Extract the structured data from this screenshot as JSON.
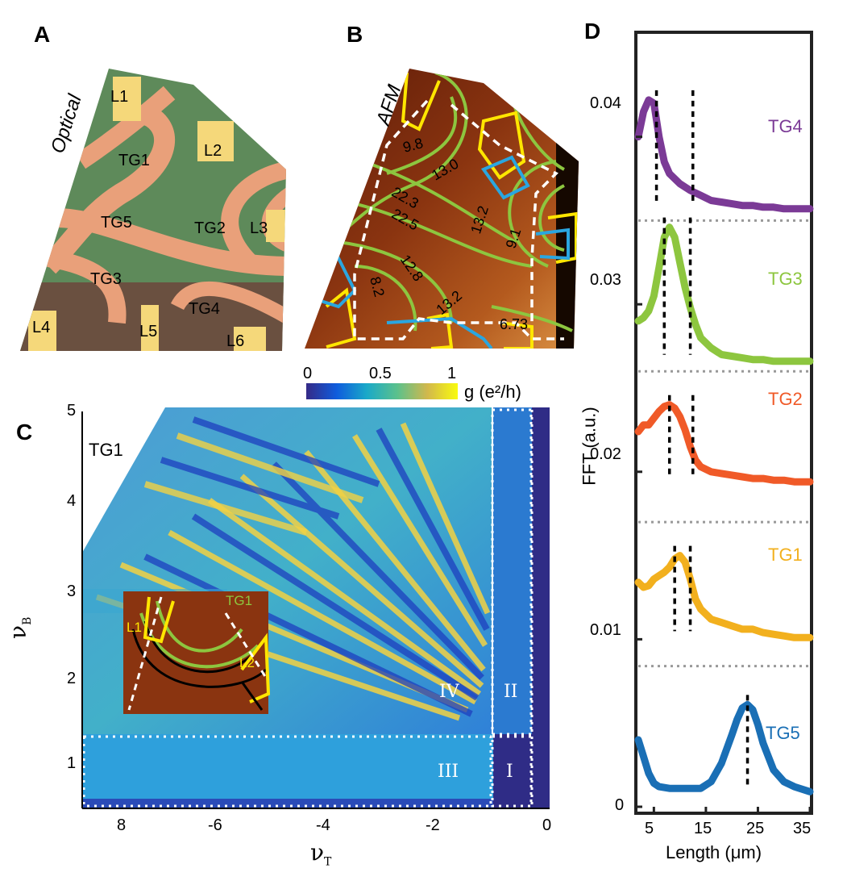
{
  "panels": {
    "a": {
      "letter": "A",
      "modality": "Optical",
      "labels": [
        "L1",
        "L2",
        "L3",
        "L4",
        "L5",
        "L6",
        "TG1",
        "TG2",
        "TG3",
        "TG4",
        "TG5"
      ]
    },
    "b": {
      "letter": "B",
      "modality": "AFM",
      "contour_values": [
        "9.8",
        "13.0",
        "22.3",
        "22.5",
        "13.2",
        "9.1",
        "12.8",
        "8.2",
        "13.2",
        "6.73"
      ]
    },
    "c": {
      "letter": "C",
      "gate_label": "TG1",
      "colorbar": {
        "ticks": [
          "0",
          "0.5",
          "1"
        ],
        "unit_label": "g (e²/h)"
      },
      "y_axis": {
        "label": "ν",
        "label_sub": "B",
        "ticks": [
          "1",
          "2",
          "3",
          "4",
          "5"
        ]
      },
      "x_axis": {
        "label": "ν",
        "label_sub": "T",
        "ticks": [
          "8",
          "-6",
          "-4",
          "-2",
          "0"
        ]
      },
      "regions": [
        "IV",
        "II",
        "III",
        "I"
      ],
      "inset_labels": [
        "L1",
        "TG1",
        "L2"
      ]
    },
    "d": {
      "letter": "D",
      "y_axis": {
        "label": "FFT (a.u.)",
        "ticks": [
          "0",
          "0.01",
          "0.02",
          "0.03",
          "0.04"
        ]
      },
      "x_axis": {
        "label": "Length (μm)",
        "ticks": [
          "5",
          "15",
          "25",
          "35"
        ]
      }
    }
  },
  "chart_data": {
    "type": "line",
    "title": "",
    "xlabel": "Length (μm)",
    "ylabel": "FFT (a.u.)",
    "xlim": [
      2,
      35
    ],
    "ylim": [
      0,
      0.046
    ],
    "series": [
      {
        "name": "TG4",
        "color": "#7b3a96",
        "x": [
          2,
          3,
          4,
          5,
          6,
          7,
          8,
          10,
          12,
          14,
          16,
          18,
          20,
          22,
          24,
          26,
          28,
          30,
          32,
          35
        ],
        "y": [
          0.04,
          0.0415,
          0.0422,
          0.042,
          0.04,
          0.0385,
          0.0378,
          0.0372,
          0.0368,
          0.0365,
          0.0362,
          0.0361,
          0.036,
          0.0359,
          0.0359,
          0.0358,
          0.0358,
          0.0357,
          0.0357,
          0.0357
        ],
        "dashed_markers": [
          5.5,
          12.5
        ]
      },
      {
        "name": "TG3",
        "color": "#8dc63f",
        "x": [
          2,
          3,
          4,
          5,
          6,
          7,
          8,
          9,
          10,
          11,
          12,
          13,
          14,
          16,
          18,
          20,
          22,
          24,
          26,
          28,
          30,
          32,
          35
        ],
        "y": [
          0.029,
          0.0292,
          0.0296,
          0.0305,
          0.0322,
          0.034,
          0.0346,
          0.034,
          0.0325,
          0.031,
          0.0298,
          0.0288,
          0.028,
          0.0274,
          0.027,
          0.0269,
          0.0268,
          0.0267,
          0.0267,
          0.0266,
          0.0266,
          0.0266,
          0.0266
        ],
        "dashed_markers": [
          7,
          12
        ]
      },
      {
        "name": "TG2",
        "color": "#f05a28",
        "x": [
          2,
          3,
          4,
          5,
          6,
          7,
          8,
          9,
          10,
          11,
          12,
          13,
          14,
          16,
          18,
          20,
          22,
          24,
          26,
          28,
          30,
          32,
          35
        ],
        "y": [
          0.0224,
          0.0228,
          0.0228,
          0.0232,
          0.0236,
          0.0239,
          0.024,
          0.0238,
          0.0233,
          0.0225,
          0.0215,
          0.0207,
          0.0203,
          0.02,
          0.0199,
          0.0198,
          0.0197,
          0.0196,
          0.0196,
          0.0195,
          0.0195,
          0.0194,
          0.0194
        ],
        "dashed_markers": [
          8,
          12.5
        ]
      },
      {
        "name": "TG1",
        "color": "#f2b01e",
        "x": [
          2,
          3,
          4,
          5,
          6,
          7,
          8,
          9,
          10,
          11,
          12,
          13,
          14,
          16,
          18,
          20,
          22,
          24,
          26,
          28,
          30,
          32,
          35
        ],
        "y": [
          0.0134,
          0.0131,
          0.0132,
          0.0136,
          0.0138,
          0.014,
          0.0143,
          0.0148,
          0.015,
          0.0146,
          0.0136,
          0.0124,
          0.0118,
          0.0112,
          0.011,
          0.0108,
          0.0106,
          0.0106,
          0.0104,
          0.0103,
          0.0102,
          0.0101,
          0.0101
        ],
        "dashed_markers": [
          9,
          12
        ]
      },
      {
        "name": "TG5",
        "color": "#1a6fb5",
        "x": [
          2,
          3,
          4,
          5,
          6,
          8,
          10,
          12,
          14,
          16,
          18,
          20,
          21,
          22,
          23,
          24,
          25,
          26,
          28,
          30,
          32,
          35
        ],
        "y": [
          0.004,
          0.003,
          0.002,
          0.0014,
          0.0012,
          0.0011,
          0.0011,
          0.0011,
          0.0011,
          0.0015,
          0.0026,
          0.0043,
          0.0052,
          0.0059,
          0.0061,
          0.0058,
          0.0049,
          0.0038,
          0.0022,
          0.0015,
          0.0012,
          0.0009
        ],
        "dashed_markers": [
          23
        ]
      }
    ],
    "separators_y": [
      0.035,
      0.026,
      0.017,
      0.0084
    ]
  }
}
